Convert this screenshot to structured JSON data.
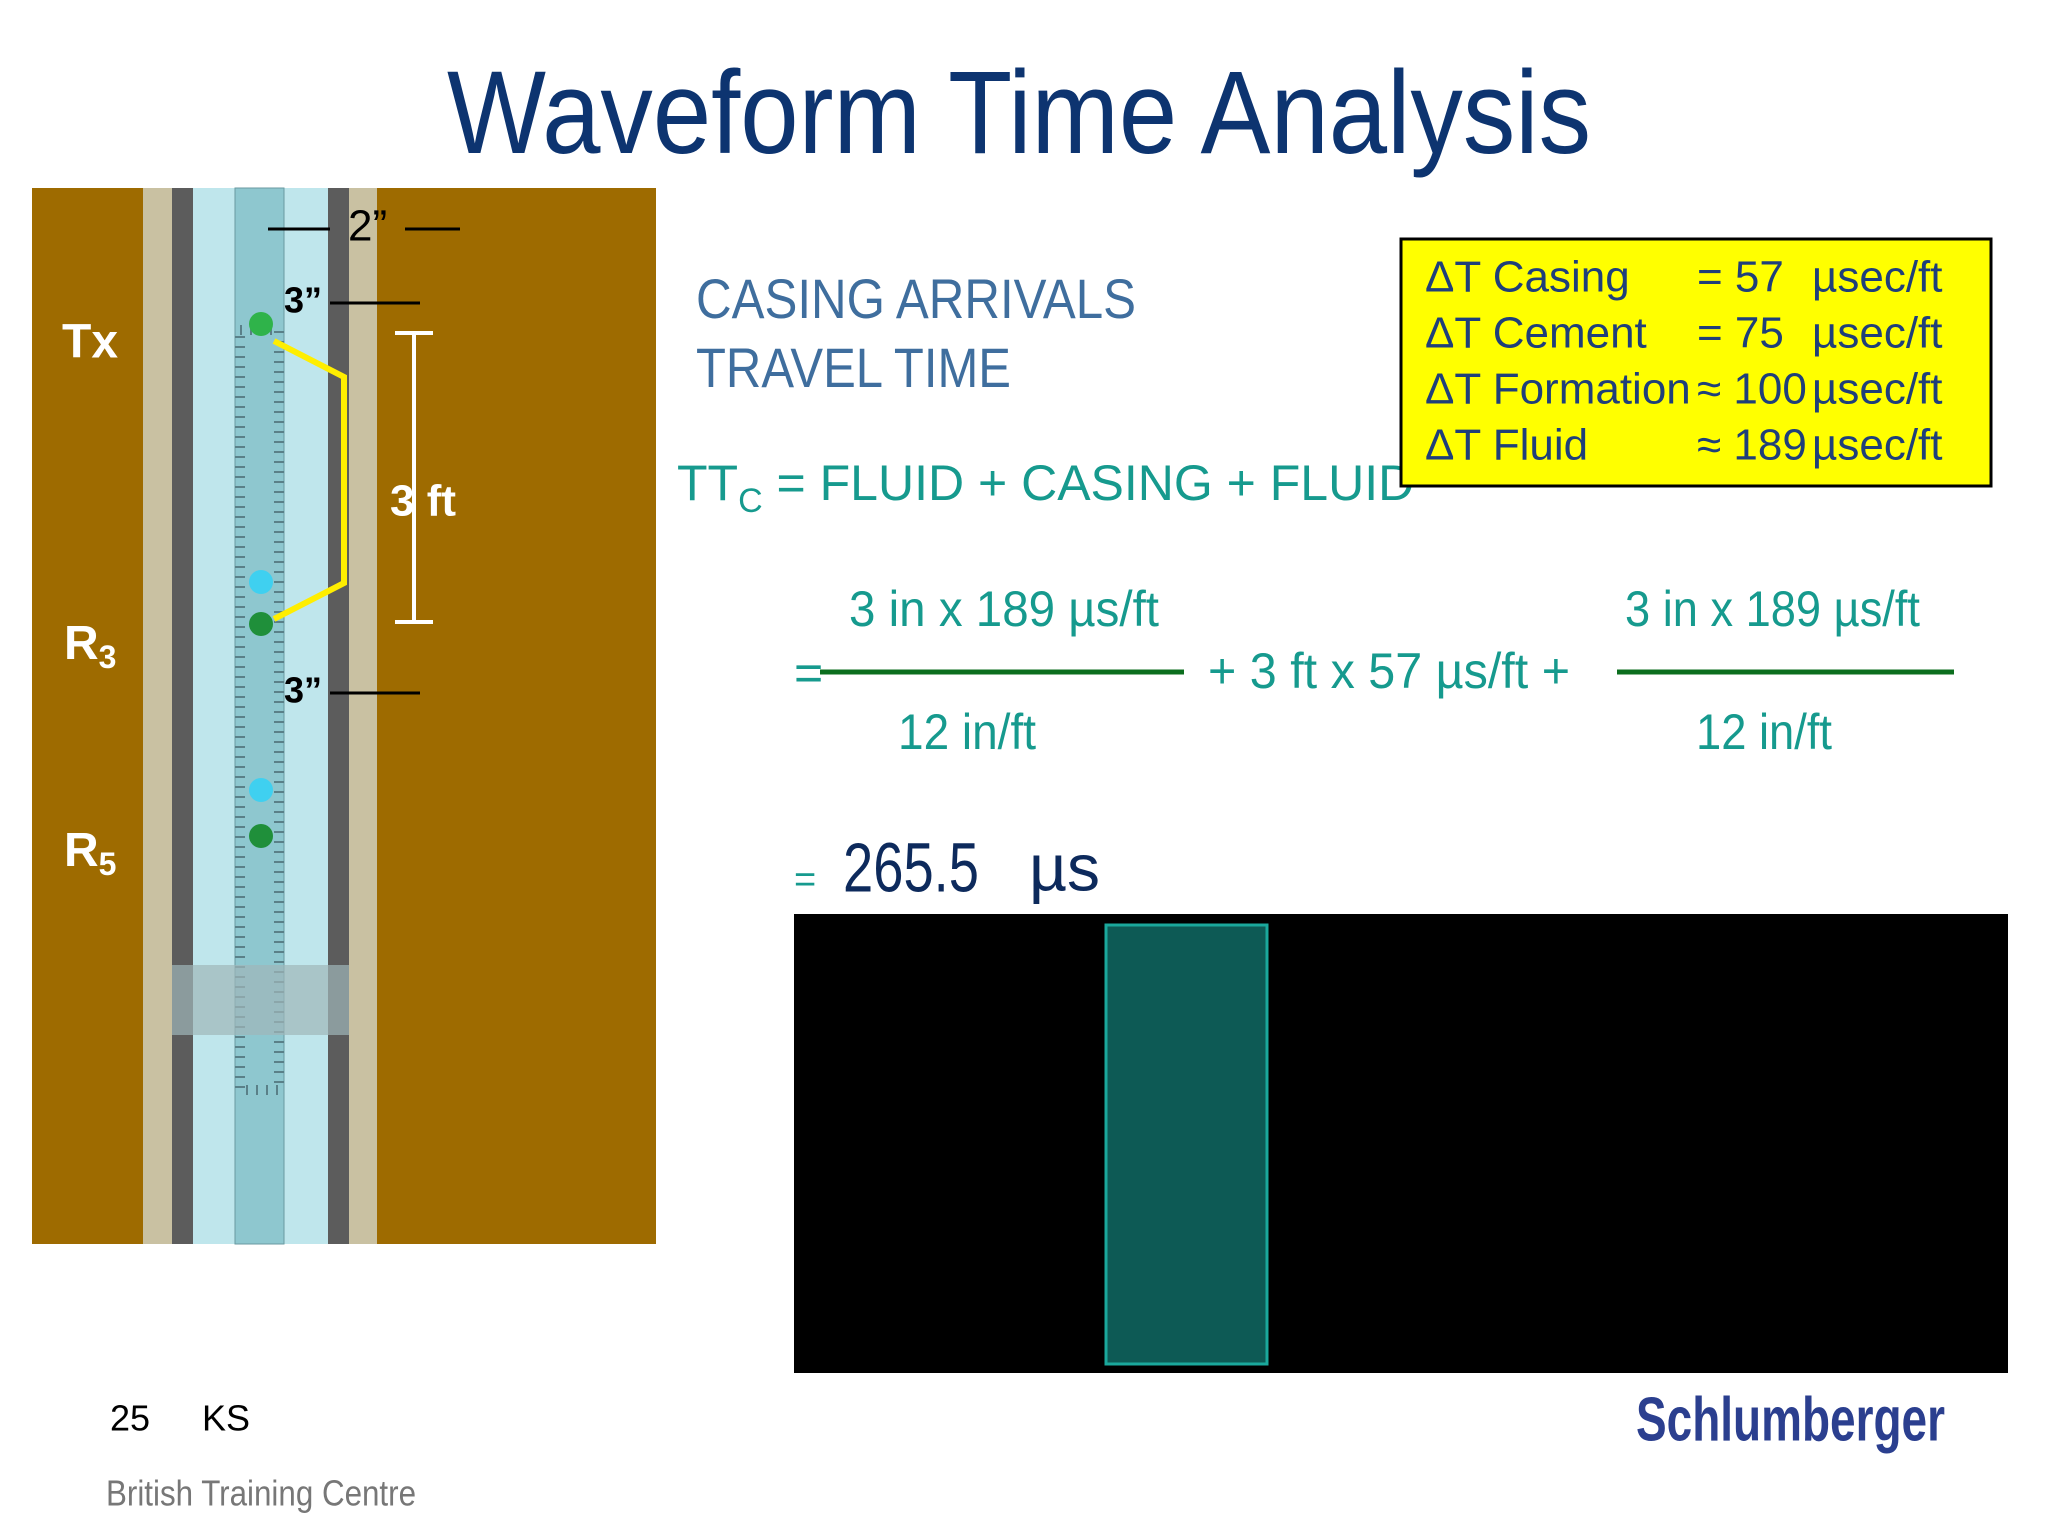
{
  "header": {
    "title": "Waveform Time Analysis"
  },
  "diagram": {
    "gap_top": "2”",
    "offset_top": "3”",
    "offset_bottom": "3”",
    "spacing": "3 ft",
    "transmitter": "Tx",
    "receiver_3": {
      "main": "R",
      "sub": "3"
    },
    "receiver_5": {
      "main": "R",
      "sub": "5"
    }
  },
  "heading": [
    "CASING ARRIVALS",
    "TRAVEL TIME"
  ],
  "equation": {
    "lhs": "TT",
    "lhs_sub": "C",
    "rhs": " =  FLUID + CASING + FLUID",
    "eq1": "=",
    "frac1_num": "3 in x 189  µs/ft",
    "frac1_den": "12 in/ft",
    "middle": "+  3 ft x 57 µs/ft  +",
    "frac2_num": "3 in x 189 µs/ft",
    "frac2_den": "12 in/ft",
    "eq2": "=",
    "result": "265.5",
    "result_unit": "µs"
  },
  "legend_box": {
    "rows": [
      [
        "ΔT Casing",
        "= 57",
        "µsec/ft"
      ],
      [
        "ΔT Cement",
        "= 75",
        "µsec/ft"
      ],
      [
        "ΔT Formation",
        "≈ 100",
        "µsec/ft"
      ],
      [
        "ΔT Fluid",
        "≈ 189",
        "µsec/ft"
      ]
    ]
  },
  "footer": {
    "page": "25",
    "initials": "KS",
    "centre": "British Training Centre",
    "logo": "Schlumberger"
  }
}
